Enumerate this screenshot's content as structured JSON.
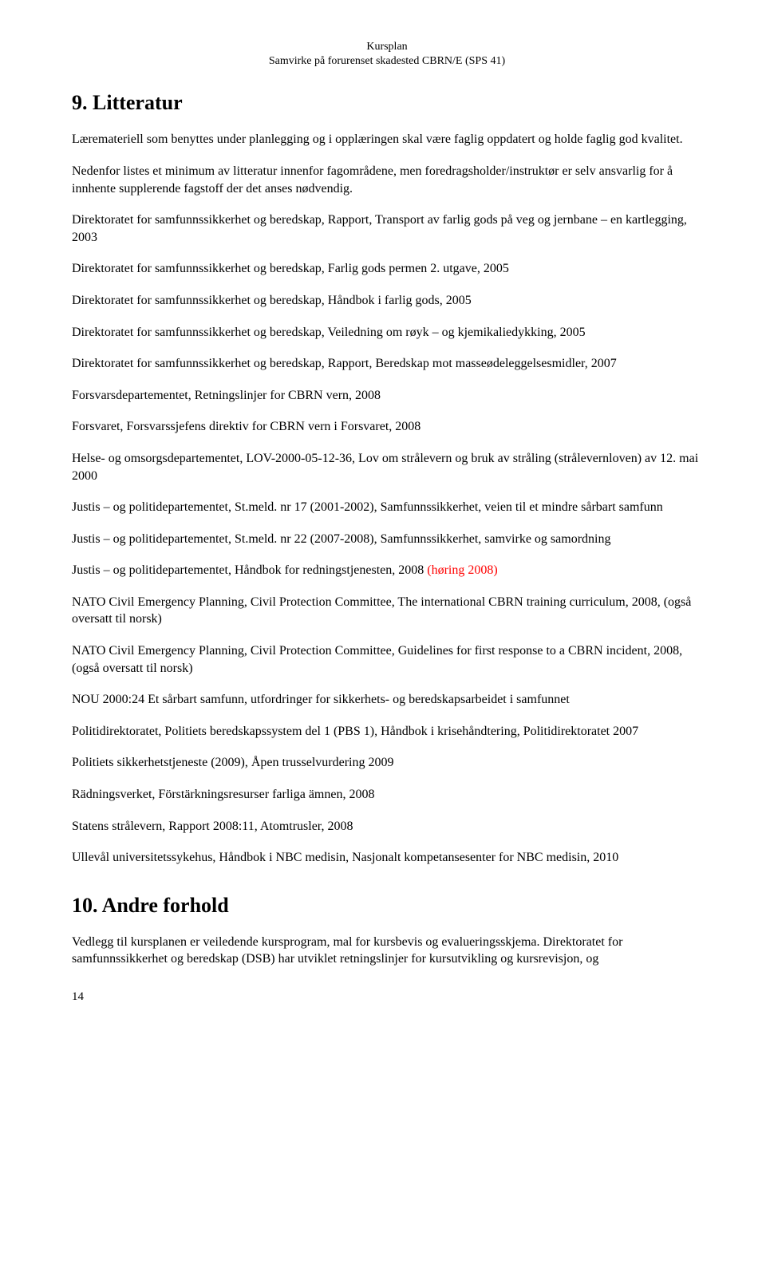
{
  "header": {
    "line1": "Kursplan",
    "line2": "Samvirke på forurenset skadested CBRN/E (SPS 41)"
  },
  "section9": {
    "title": "9. Litteratur",
    "p1": "Læremateriell som benyttes under planlegging og i opplæringen skal være faglig oppdatert og holde faglig god kvalitet.",
    "p2": "Nedenfor listes et minimum av litteratur innenfor fagområdene, men foredragsholder/instruktør er selv ansvarlig for å innhente supplerende fagstoff der det anses nødvendig.",
    "refs": [
      "Direktoratet for samfunnssikkerhet og beredskap, Rapport, Transport av farlig gods på veg og jernbane – en kartlegging, 2003",
      "Direktoratet for samfunnssikkerhet og beredskap, Farlig gods permen 2. utgave, 2005",
      "Direktoratet for samfunnssikkerhet og beredskap, Håndbok i farlig gods, 2005",
      "Direktoratet for samfunnssikkerhet og beredskap, Veiledning om røyk – og kjemikaliedykking, 2005",
      "Direktoratet for samfunnssikkerhet og beredskap, Rapport, Beredskap mot masseødeleggelsesmidler, 2007",
      "Forsvarsdepartementet, Retningslinjer for CBRN vern, 2008",
      "Forsvaret, Forsvarssjefens direktiv for CBRN vern i Forsvaret, 2008",
      "Helse- og omsorgsdepartementet, LOV-2000-05-12-36, Lov om strålevern og bruk av stråling (strålevernloven) av 12. mai 2000",
      "Justis – og politidepartementet, St.meld. nr 17 (2001-2002), Samfunnssikkerhet, veien til et mindre sårbart samfunn",
      "Justis – og politidepartementet, St.meld. nr 22 (2007-2008), Samfunnssikkerhet, samvirke og samordning"
    ],
    "ref_mixed": {
      "black": "Justis – og politidepartementet, Håndbok for redningstjenesten, 2008 ",
      "red": "(høring 2008)"
    },
    "refs2": [
      "NATO Civil Emergency Planning, Civil Protection Committee, The international CBRN training curriculum, 2008, (også oversatt til norsk)",
      "NATO Civil Emergency Planning, Civil Protection Committee, Guidelines for first response to a CBRN incident, 2008, (også oversatt til norsk)",
      "NOU 2000:24 Et sårbart samfunn, utfordringer for sikkerhets- og beredskapsarbeidet i samfunnet",
      "Politidirektoratet, Politiets beredskapssystem del 1 (PBS 1), Håndbok i krisehåndtering, Politidirektoratet 2007",
      "Politiets sikkerhetstjeneste (2009), Åpen trusselvurdering 2009",
      "Rädningsverket, Förstärkningsresurser farliga ämnen, 2008",
      "Statens strålevern, Rapport 2008:11, Atomtrusler, 2008",
      "Ullevål universitetssykehus, Håndbok i NBC medisin, Nasjonalt kompetansesenter for NBC medisin, 2010"
    ]
  },
  "section10": {
    "title": "10. Andre forhold",
    "p1": "Vedlegg til kursplanen er veiledende kursprogram, mal for kursbevis og evalueringsskjema. Direktoratet for samfunnssikkerhet og beredskap (DSB) har utviklet retningslinjer for kursutvikling og kursrevisjon, og"
  },
  "pageNumber": "14"
}
